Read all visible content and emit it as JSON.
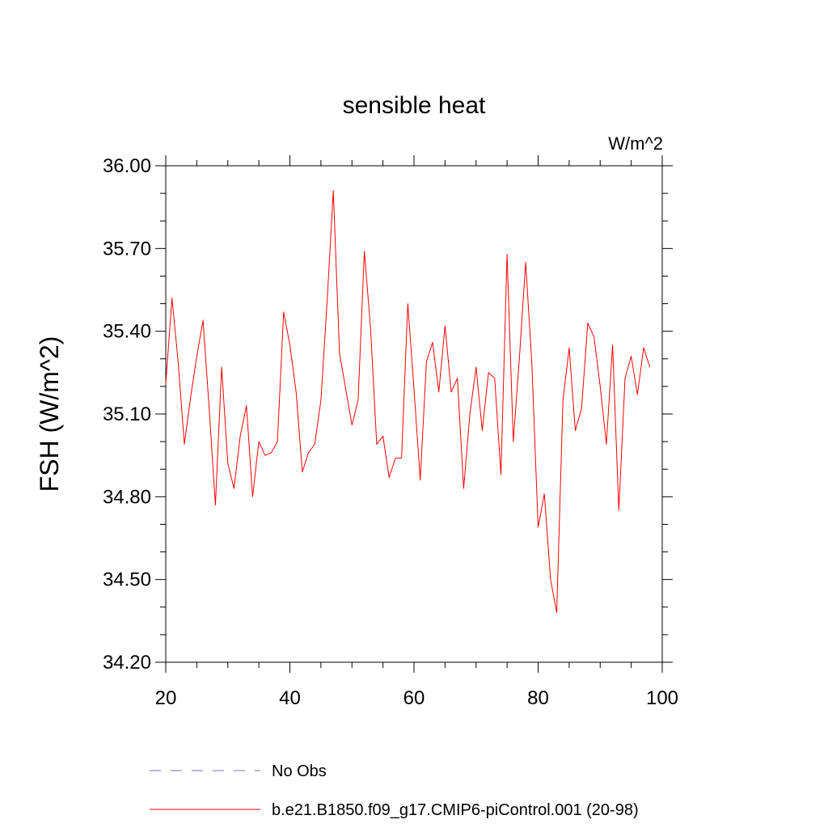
{
  "chart_data": {
    "type": "line",
    "title": "sensible heat",
    "units_label": "W/m^2",
    "ylabel": "FSH  (W/m^2)",
    "xlabel": "",
    "xlim": [
      20,
      100
    ],
    "ylim": [
      34.2,
      36.0
    ],
    "x_ticks": [
      20,
      40,
      60,
      80,
      100
    ],
    "x_tick_labels": [
      "20",
      "40",
      "60",
      "80",
      "100"
    ],
    "y_ticks": [
      34.2,
      34.5,
      34.8,
      35.1,
      35.4,
      35.7,
      36.0
    ],
    "y_tick_labels": [
      "34.20",
      "34.50",
      "34.80",
      "35.10",
      "35.40",
      "35.70",
      "36.00"
    ],
    "grid": false,
    "legend_position": "bottom",
    "legend": [
      {
        "name": "No Obs",
        "color": "#7b68c8",
        "style": "dashed"
      },
      {
        "name": "b.e21.B1850.f09_g17.CMIP6-piControl.001 (20-98)",
        "color": "#ff0000",
        "style": "solid"
      }
    ],
    "series": [
      {
        "name": "b.e21.B1850.f09_g17.CMIP6-piControl.001 (20-98)",
        "color": "#ff0000",
        "x": [
          20,
          21,
          22,
          23,
          24,
          25,
          26,
          27,
          28,
          29,
          30,
          31,
          32,
          33,
          34,
          35,
          36,
          37,
          38,
          39,
          40,
          41,
          42,
          43,
          44,
          45,
          46,
          47,
          48,
          49,
          50,
          51,
          52,
          53,
          54,
          55,
          56,
          57,
          58,
          59,
          60,
          61,
          62,
          63,
          64,
          65,
          66,
          67,
          68,
          69,
          70,
          71,
          72,
          73,
          74,
          75,
          76,
          77,
          78,
          79,
          80,
          81,
          82,
          83,
          84,
          85,
          86,
          87,
          88,
          89,
          90,
          91,
          92,
          93,
          94,
          95,
          96,
          97,
          98
        ],
        "y": [
          35.21,
          35.52,
          35.29,
          34.99,
          35.16,
          35.31,
          35.44,
          35.12,
          34.77,
          35.27,
          34.92,
          34.83,
          35.02,
          35.13,
          34.8,
          35.0,
          34.95,
          34.96,
          35.0,
          35.47,
          35.35,
          35.18,
          34.89,
          34.96,
          34.99,
          35.15,
          35.51,
          35.91,
          35.32,
          35.19,
          35.06,
          35.15,
          35.69,
          35.41,
          34.99,
          35.02,
          34.87,
          34.94,
          34.94,
          35.5,
          35.19,
          34.86,
          35.29,
          35.36,
          35.18,
          35.42,
          35.18,
          35.23,
          34.83,
          35.1,
          35.27,
          35.04,
          35.25,
          35.23,
          34.88,
          35.68,
          35.0,
          35.31,
          35.65,
          35.28,
          34.69,
          34.81,
          34.5,
          34.38,
          35.15,
          35.34,
          35.04,
          35.12,
          35.43,
          35.38,
          35.2,
          34.99,
          35.35,
          34.75,
          35.23,
          35.31,
          35.17,
          35.34,
          35.27
        ]
      }
    ]
  }
}
